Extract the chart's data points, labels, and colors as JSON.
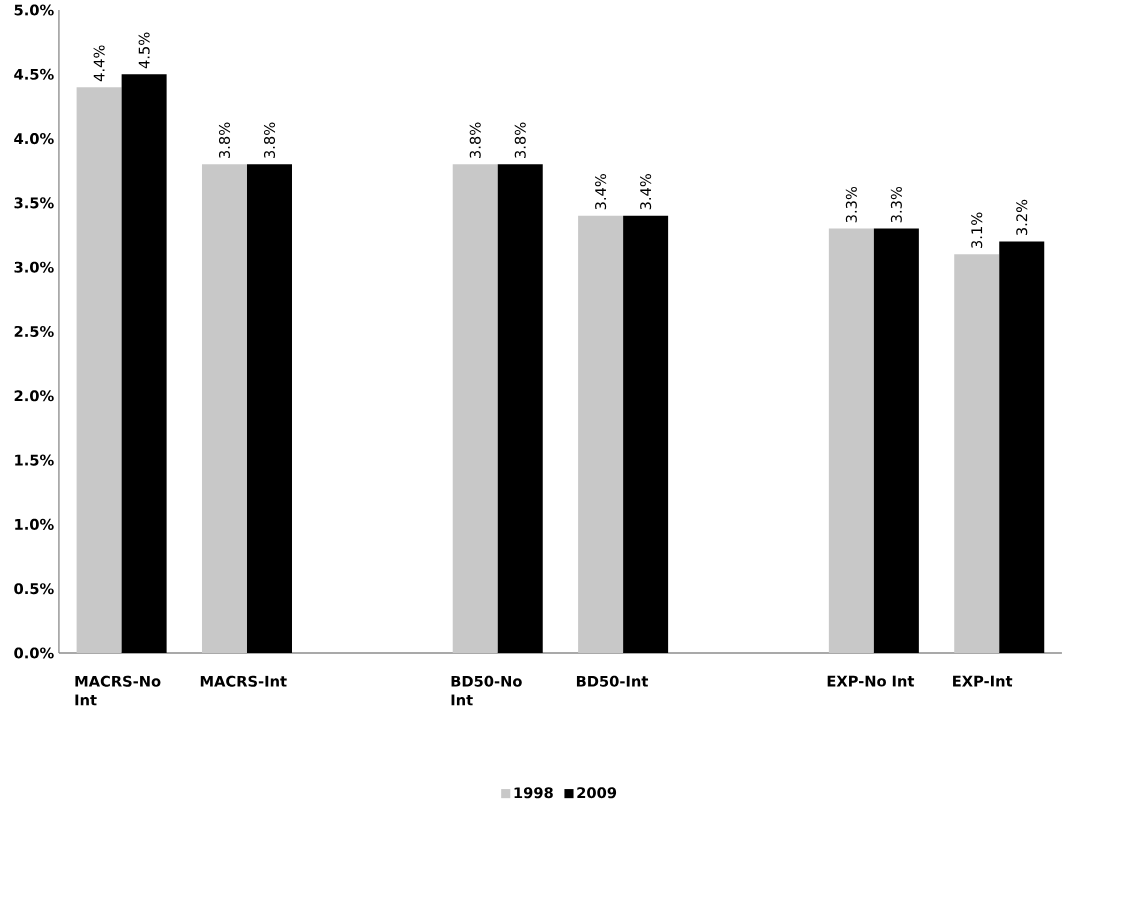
{
  "chart_data": {
    "type": "bar",
    "categories": [
      "MACRS-No Int",
      "MACRS-Int",
      null,
      "BD50-No Int",
      "BD50-Int",
      null,
      "EXP-No Int",
      "EXP-Int"
    ],
    "series": [
      {
        "name": "1998",
        "color": "#c8c8c8",
        "values": [
          4.4,
          3.8,
          null,
          3.8,
          3.4,
          null,
          3.3,
          3.1
        ],
        "value_labels": [
          "4.4%",
          "3.8%",
          null,
          "3.8%",
          "3.4%",
          null,
          "3.3%",
          "3.1%"
        ]
      },
      {
        "name": "2009",
        "color": "#000000",
        "values": [
          4.5,
          3.8,
          null,
          3.8,
          3.4,
          null,
          3.3,
          3.2
        ],
        "value_labels": [
          "4.5%",
          "3.8%",
          null,
          "3.8%",
          "3.4%",
          null,
          "3.3%",
          "3.2%"
        ]
      }
    ],
    "ylim": [
      0,
      5
    ],
    "yticks": [
      {
        "value": 0,
        "label": "0.0%"
      },
      {
        "value": 0.5,
        "label": "0.5%"
      },
      {
        "value": 1,
        "label": "1.0%"
      },
      {
        "value": 1.5,
        "label": "1.5%"
      },
      {
        "value": 2,
        "label": "2.0%"
      },
      {
        "value": 2.5,
        "label": "2.5%"
      },
      {
        "value": 3,
        "label": "3.0%"
      },
      {
        "value": 3.5,
        "label": "3.5%"
      },
      {
        "value": 4,
        "label": "4.0%"
      },
      {
        "value": 4.5,
        "label": "4.5%"
      },
      {
        "value": 5,
        "label": "5.0%"
      }
    ],
    "grid": false,
    "legend": "bottom"
  }
}
